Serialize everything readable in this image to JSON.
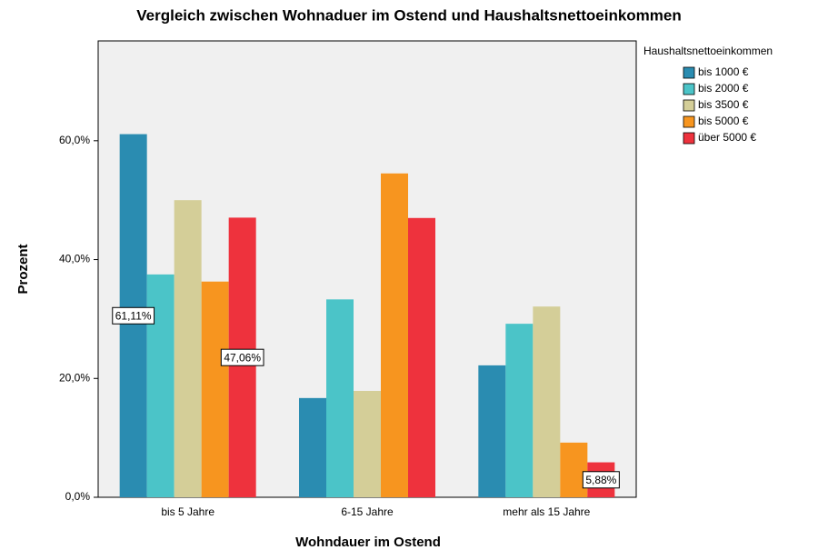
{
  "chart_data": {
    "type": "bar",
    "title": "Vergleich zwischen Wohnaduer im Ostend und Haushaltsnettoeinkommen",
    "x_label": "Wohndauer im Ostend",
    "y_label": "Prozent",
    "legend_title": "Haushaltsnettoeinkommen",
    "legend_position": "right",
    "categories": [
      "bis 5 Jahre",
      "6-15 Jahre",
      "mehr als 15 Jahre"
    ],
    "series": [
      {
        "name": "bis 1000 €",
        "color": "#2a8cb1",
        "values": [
          61.11,
          16.7,
          22.2
        ],
        "value_labels": [
          "61,11%",
          null,
          null
        ]
      },
      {
        "name": "bis 2000 €",
        "color": "#4bc4c8",
        "values": [
          37.5,
          33.3,
          29.2
        ],
        "value_labels": [
          null,
          null,
          null
        ]
      },
      {
        "name": "bis 3500 €",
        "color": "#d4ce98",
        "values": [
          50.0,
          17.9,
          32.1
        ],
        "value_labels": [
          null,
          null,
          null
        ]
      },
      {
        "name": "bis 5000 €",
        "color": "#f7951f",
        "values": [
          36.3,
          54.5,
          9.2
        ],
        "value_labels": [
          null,
          null,
          null
        ]
      },
      {
        "name": "über 5000 €",
        "color": "#ee323d",
        "values": [
          47.06,
          47.0,
          5.88
        ],
        "value_labels": [
          "47,06%",
          null,
          "5,88%"
        ]
      }
    ],
    "ylim": [
      0,
      76.8
    ],
    "yticks": [
      {
        "value": 0,
        "label": "0,0%"
      },
      {
        "value": 20,
        "label": "20,0%"
      },
      {
        "value": 40,
        "label": "40,0%"
      },
      {
        "value": 60,
        "label": "60,0%"
      }
    ]
  }
}
